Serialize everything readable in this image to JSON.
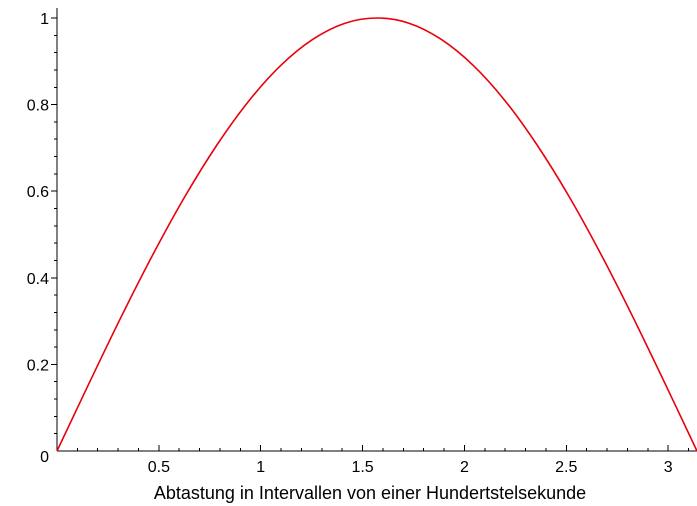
{
  "chart_data": {
    "type": "line",
    "title": "",
    "xlabel": "Abtastung in Intervallen von einer Hundertstelsekunde",
    "ylabel": "",
    "xlim": [
      0,
      3.1416
    ],
    "ylim": [
      0,
      1
    ],
    "grid": false,
    "x_ticks": [
      0.5,
      1,
      1.5,
      2,
      2.5,
      3
    ],
    "x_tick_labels": [
      "0.5",
      "1",
      "1.5",
      "2",
      "2.5",
      "3"
    ],
    "y_ticks": [
      0,
      0.2,
      0.4,
      0.6,
      0.8,
      1
    ],
    "y_tick_labels": [
      "0",
      "0.2",
      "0.4",
      "0.6",
      "0.8",
      "1"
    ],
    "series": [
      {
        "color": "#e8000b",
        "x": [
          0,
          0.1571,
          0.3142,
          0.4712,
          0.6283,
          0.7854,
          0.9425,
          1.0996,
          1.2566,
          1.4137,
          1.5708,
          1.7279,
          1.885,
          2.042,
          2.1991,
          2.3562,
          2.5133,
          2.6704,
          2.8274,
          2.9845,
          3.1416
        ],
        "y": [
          0,
          0.156,
          0.309,
          0.454,
          0.588,
          0.707,
          0.809,
          0.891,
          0.951,
          0.988,
          1.0,
          0.988,
          0.951,
          0.891,
          0.809,
          0.707,
          0.588,
          0.454,
          0.309,
          0.156,
          0
        ]
      }
    ]
  }
}
